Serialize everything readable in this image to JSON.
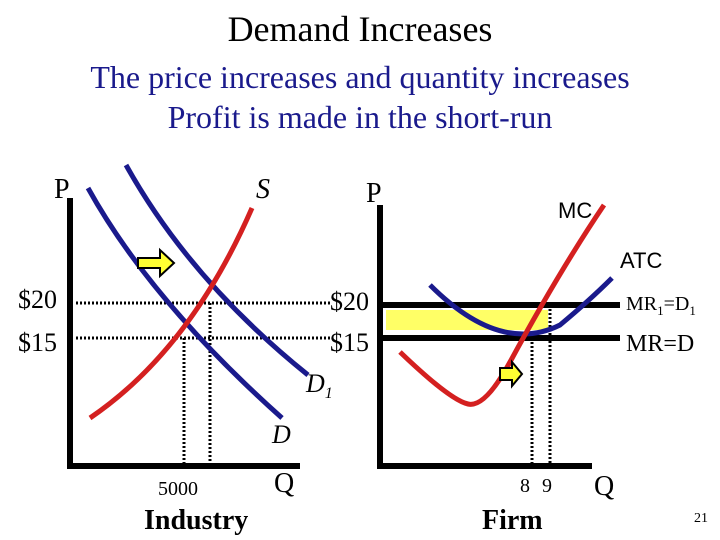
{
  "title": "Demand Increases",
  "subtitle_lines": [
    "The price increases and quantity increases",
    "Profit is made in the short-run"
  ],
  "colors": {
    "supply": "#d42020",
    "demand": "#1a1a8c",
    "mc": "#d42020",
    "atc": "#1a1a8c",
    "profit_area": "#ffff66",
    "arrow_fill": "#ffff33",
    "axes": "#000000"
  },
  "industry": {
    "price_axis_label": "P",
    "quantity_axis_label": "Q",
    "supply_label": "S",
    "demand_label": "D",
    "demand_shifted_label": "D",
    "demand_shifted_subscript": "1",
    "price_high_label": "$20",
    "price_low_label": "$15",
    "quantity_label": "5000",
    "panel_label": "Industry"
  },
  "firm": {
    "price_axis_label": "P",
    "mc_label": "MC",
    "atc_label": "ATC",
    "price_high_label": "$20",
    "price_low_label": "$15",
    "mr1_label_parts": [
      "MR",
      "1",
      "=D",
      "1"
    ],
    "mr_label": "MR=D",
    "quantity_low_label": "8",
    "quantity_high_label": "9",
    "quantity_axis_label": "Q",
    "panel_label": "Firm"
  },
  "slide_number": "21"
}
